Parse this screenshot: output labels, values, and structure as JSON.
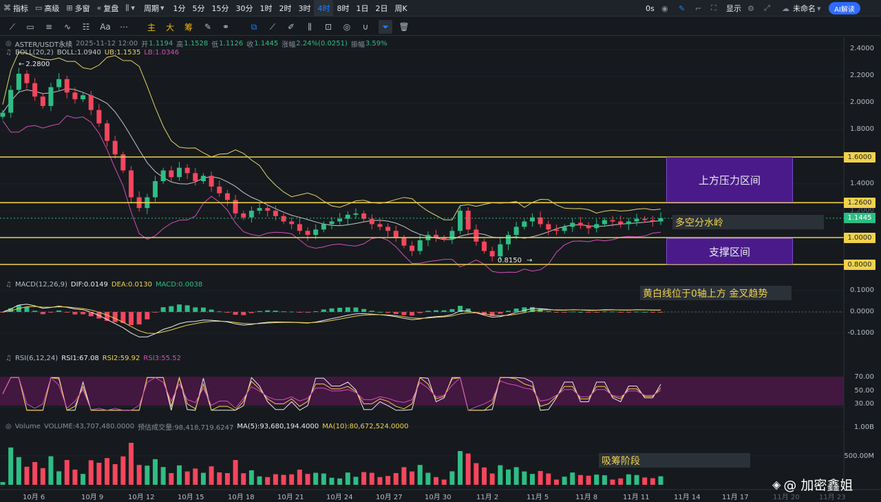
{
  "toolbar": {
    "indicators": "指标",
    "advanced": "高级",
    "multi_window": "多窗",
    "replay": "复盘",
    "chart_type_icon": "candle-icon",
    "period": "周期",
    "intervals": [
      "1分",
      "5分",
      "15分",
      "30分",
      "1时",
      "2时",
      "3时",
      "4时",
      "8时",
      "1日",
      "2日",
      "周K"
    ],
    "active_interval": "4时",
    "timer": "0s",
    "display": "显示",
    "workspace": "未命名",
    "ai_button": "AI解读"
  },
  "drawbar": {
    "main": "主",
    "big": "大",
    "chips": "筹"
  },
  "symbol_info": {
    "symbol": "ASTER/USDT永续",
    "datetime": "2025-11-12 12:00",
    "open_label": "开",
    "open": "1.1194",
    "high_label": "高",
    "high": "1.1528",
    "low_label": "低",
    "low": "1.1126",
    "close_label": "收",
    "close": "1.1445",
    "change_label": "涨幅",
    "change": "2.24%(0.0251)",
    "amplitude_label": "振幅",
    "amplitude": "3.59%"
  },
  "boll": {
    "name": "BOLL(20,2)",
    "mid": "BOLL:1.0940",
    "ub": "UB:1.1535",
    "lb": "LB:1.0346"
  },
  "macd": {
    "name": "MACD(12,26,9)",
    "dif": "DIF:0.0149",
    "dea": "DEA:0.0130",
    "macd": "MACD:0.0038"
  },
  "rsi": {
    "name": "RSI(6,12,24)",
    "rsi1": "RSI1:67.08",
    "rsi2": "RSI2:59.92",
    "rsi3": "RSI3:55.52"
  },
  "volume": {
    "name": "Volume",
    "volume": "VOLUME:43,707,480.0000",
    "estimated": "预估成交量:98,418,719.6247",
    "ma5": "MA(5):93,680,194.4000",
    "ma10": "MA(10):80,672,524.0000"
  },
  "price_axis": [
    "2.4000",
    "2.2000",
    "2.0000",
    "1.8000",
    "1.6000",
    "1.4000",
    "1.2000",
    "1.0000",
    "0.8000"
  ],
  "price_tags": {
    "resistance_top": "1.6000",
    "resistance_bottom": "1.2600",
    "current": "1.1445",
    "support_top": "1.0000",
    "support_bottom": "0.8000"
  },
  "macd_axis": [
    "0.1000",
    "0.0000",
    "-0.1000"
  ],
  "rsi_axis": [
    "70.00",
    "50.00",
    "30.00"
  ],
  "vol_axis": [
    "1.00B",
    "500.00M"
  ],
  "x_axis": [
    "10月 6",
    "10月 9",
    "10月 12",
    "10月 15",
    "10月 18",
    "10月 21",
    "10月 24",
    "10月 27",
    "10月 30",
    "11月 2",
    "11月 5",
    "11月 8",
    "11月 11",
    "11月 14",
    "11月 17",
    "11月 20",
    "11月 23"
  ],
  "markers": {
    "high": "2.2800",
    "low": "0.8150"
  },
  "annotations": {
    "resistance": "上方压力区间",
    "watershed": "多空分水岭",
    "support": "支撑区间",
    "macd_note": "黄白线位于0轴上方 金叉趋势",
    "volume_note": "吸筹阶段"
  },
  "watermark": "@ 加密鑫姐",
  "colors": {
    "up": "#2ebd85",
    "down": "#f6465d",
    "level_line": "#f0d24d",
    "boll_mid": "#c7c7c7",
    "boll_ub": "#e6d36a",
    "boll_lb": "#d44fb8",
    "zone": "#4a1a8a"
  },
  "chart_data": {
    "type": "candlestick",
    "price_levels": [
      1.6,
      1.26,
      1.0,
      0.8
    ],
    "current_price": 1.1445,
    "period_high": 2.28,
    "period_low": 0.815,
    "y_range": [
      0.75,
      2.45
    ],
    "closes": [
      1.93,
      2.1,
      2.22,
      2.15,
      2.05,
      1.98,
      2.12,
      2.18,
      2.08,
      2.03,
      2.06,
      1.95,
      1.85,
      1.72,
      1.62,
      1.5,
      1.3,
      1.22,
      1.3,
      1.42,
      1.5,
      1.45,
      1.52,
      1.48,
      1.42,
      1.46,
      1.38,
      1.33,
      1.28,
      1.18,
      1.15,
      1.2,
      1.22,
      1.2,
      1.16,
      1.12,
      1.1,
      1.05,
      1.02,
      1.06,
      1.1,
      1.12,
      1.14,
      1.17,
      1.18,
      1.14,
      1.1,
      1.08,
      1.05,
      1.0,
      0.94,
      0.9,
      0.98,
      1.02,
      1.0,
      0.99,
      1.05,
      1.2,
      1.06,
      0.97,
      0.9,
      0.86,
      0.95,
      1.02,
      1.08,
      1.12,
      1.15,
      1.1,
      1.06,
      1.05,
      1.08,
      1.11,
      1.09,
      1.07,
      1.1,
      1.13,
      1.12,
      1.1,
      1.12,
      1.14,
      1.13,
      1.12,
      1.1445
    ]
  }
}
